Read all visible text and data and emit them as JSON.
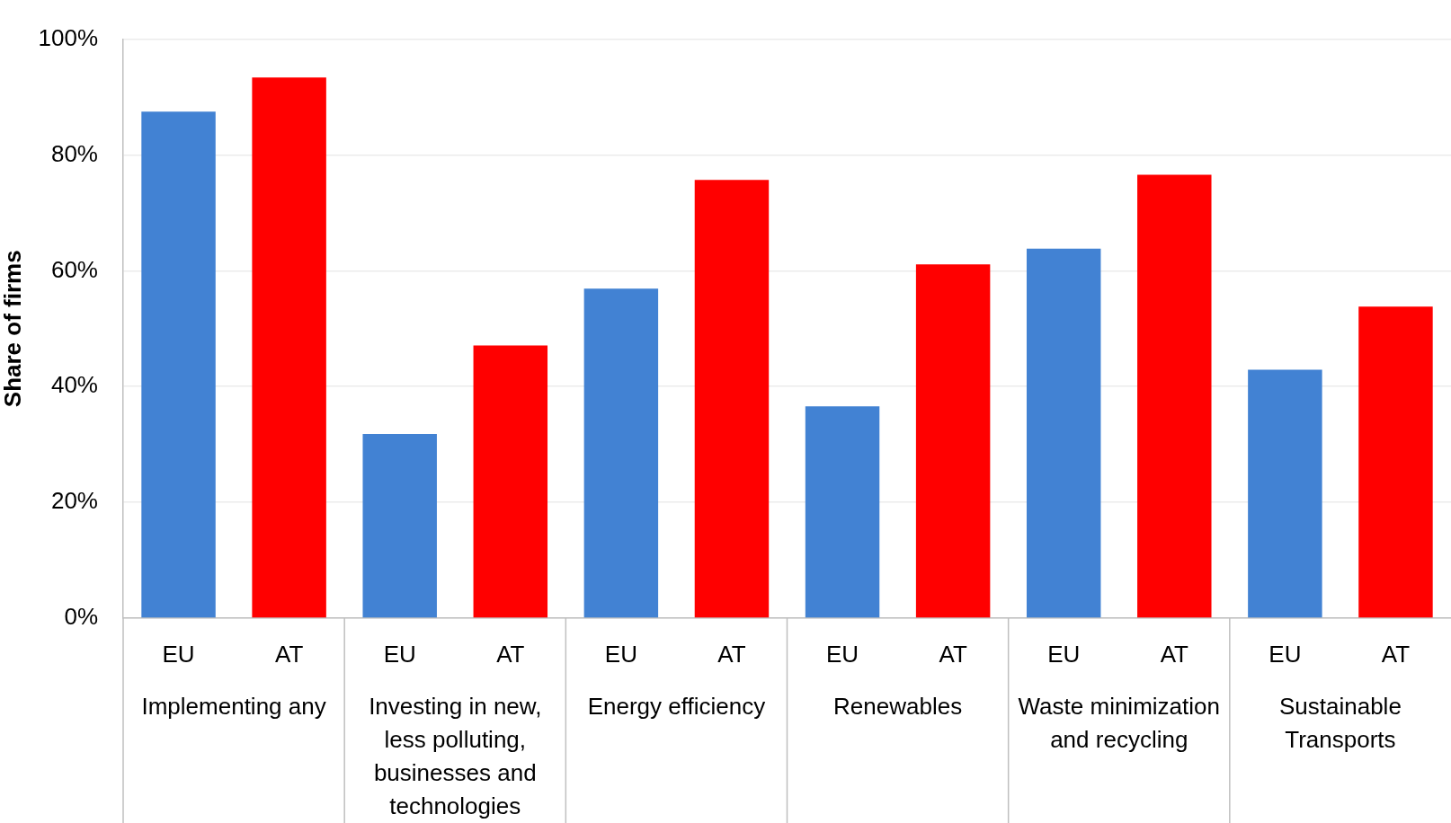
{
  "chart_data": {
    "type": "bar",
    "ylabel": "Share of firms",
    "categories": [
      "Implementing any",
      "Investing in new, less polluting, businesses and technologies",
      "Energy efficiency",
      "Renewables",
      "Waste minimization and recycling",
      "Sustainable Transports"
    ],
    "series": [
      {
        "name": "EU",
        "color": "#4282d3",
        "values": [
          87.5,
          31.8,
          56.9,
          36.6,
          63.8,
          42.9
        ]
      },
      {
        "name": "AT",
        "color": "#ff0000",
        "values": [
          93.4,
          47.1,
          75.7,
          61.1,
          76.6,
          53.8
        ]
      }
    ],
    "ylim": [
      0,
      100
    ],
    "yticks": [
      {
        "value": 0,
        "label": "0%"
      },
      {
        "value": 20,
        "label": "20%"
      },
      {
        "value": 40,
        "label": "40%"
      },
      {
        "value": 60,
        "label": "60%"
      },
      {
        "value": 80,
        "label": "80%"
      },
      {
        "value": 100,
        "label": "100%"
      }
    ],
    "grid": "y",
    "legend": false
  }
}
